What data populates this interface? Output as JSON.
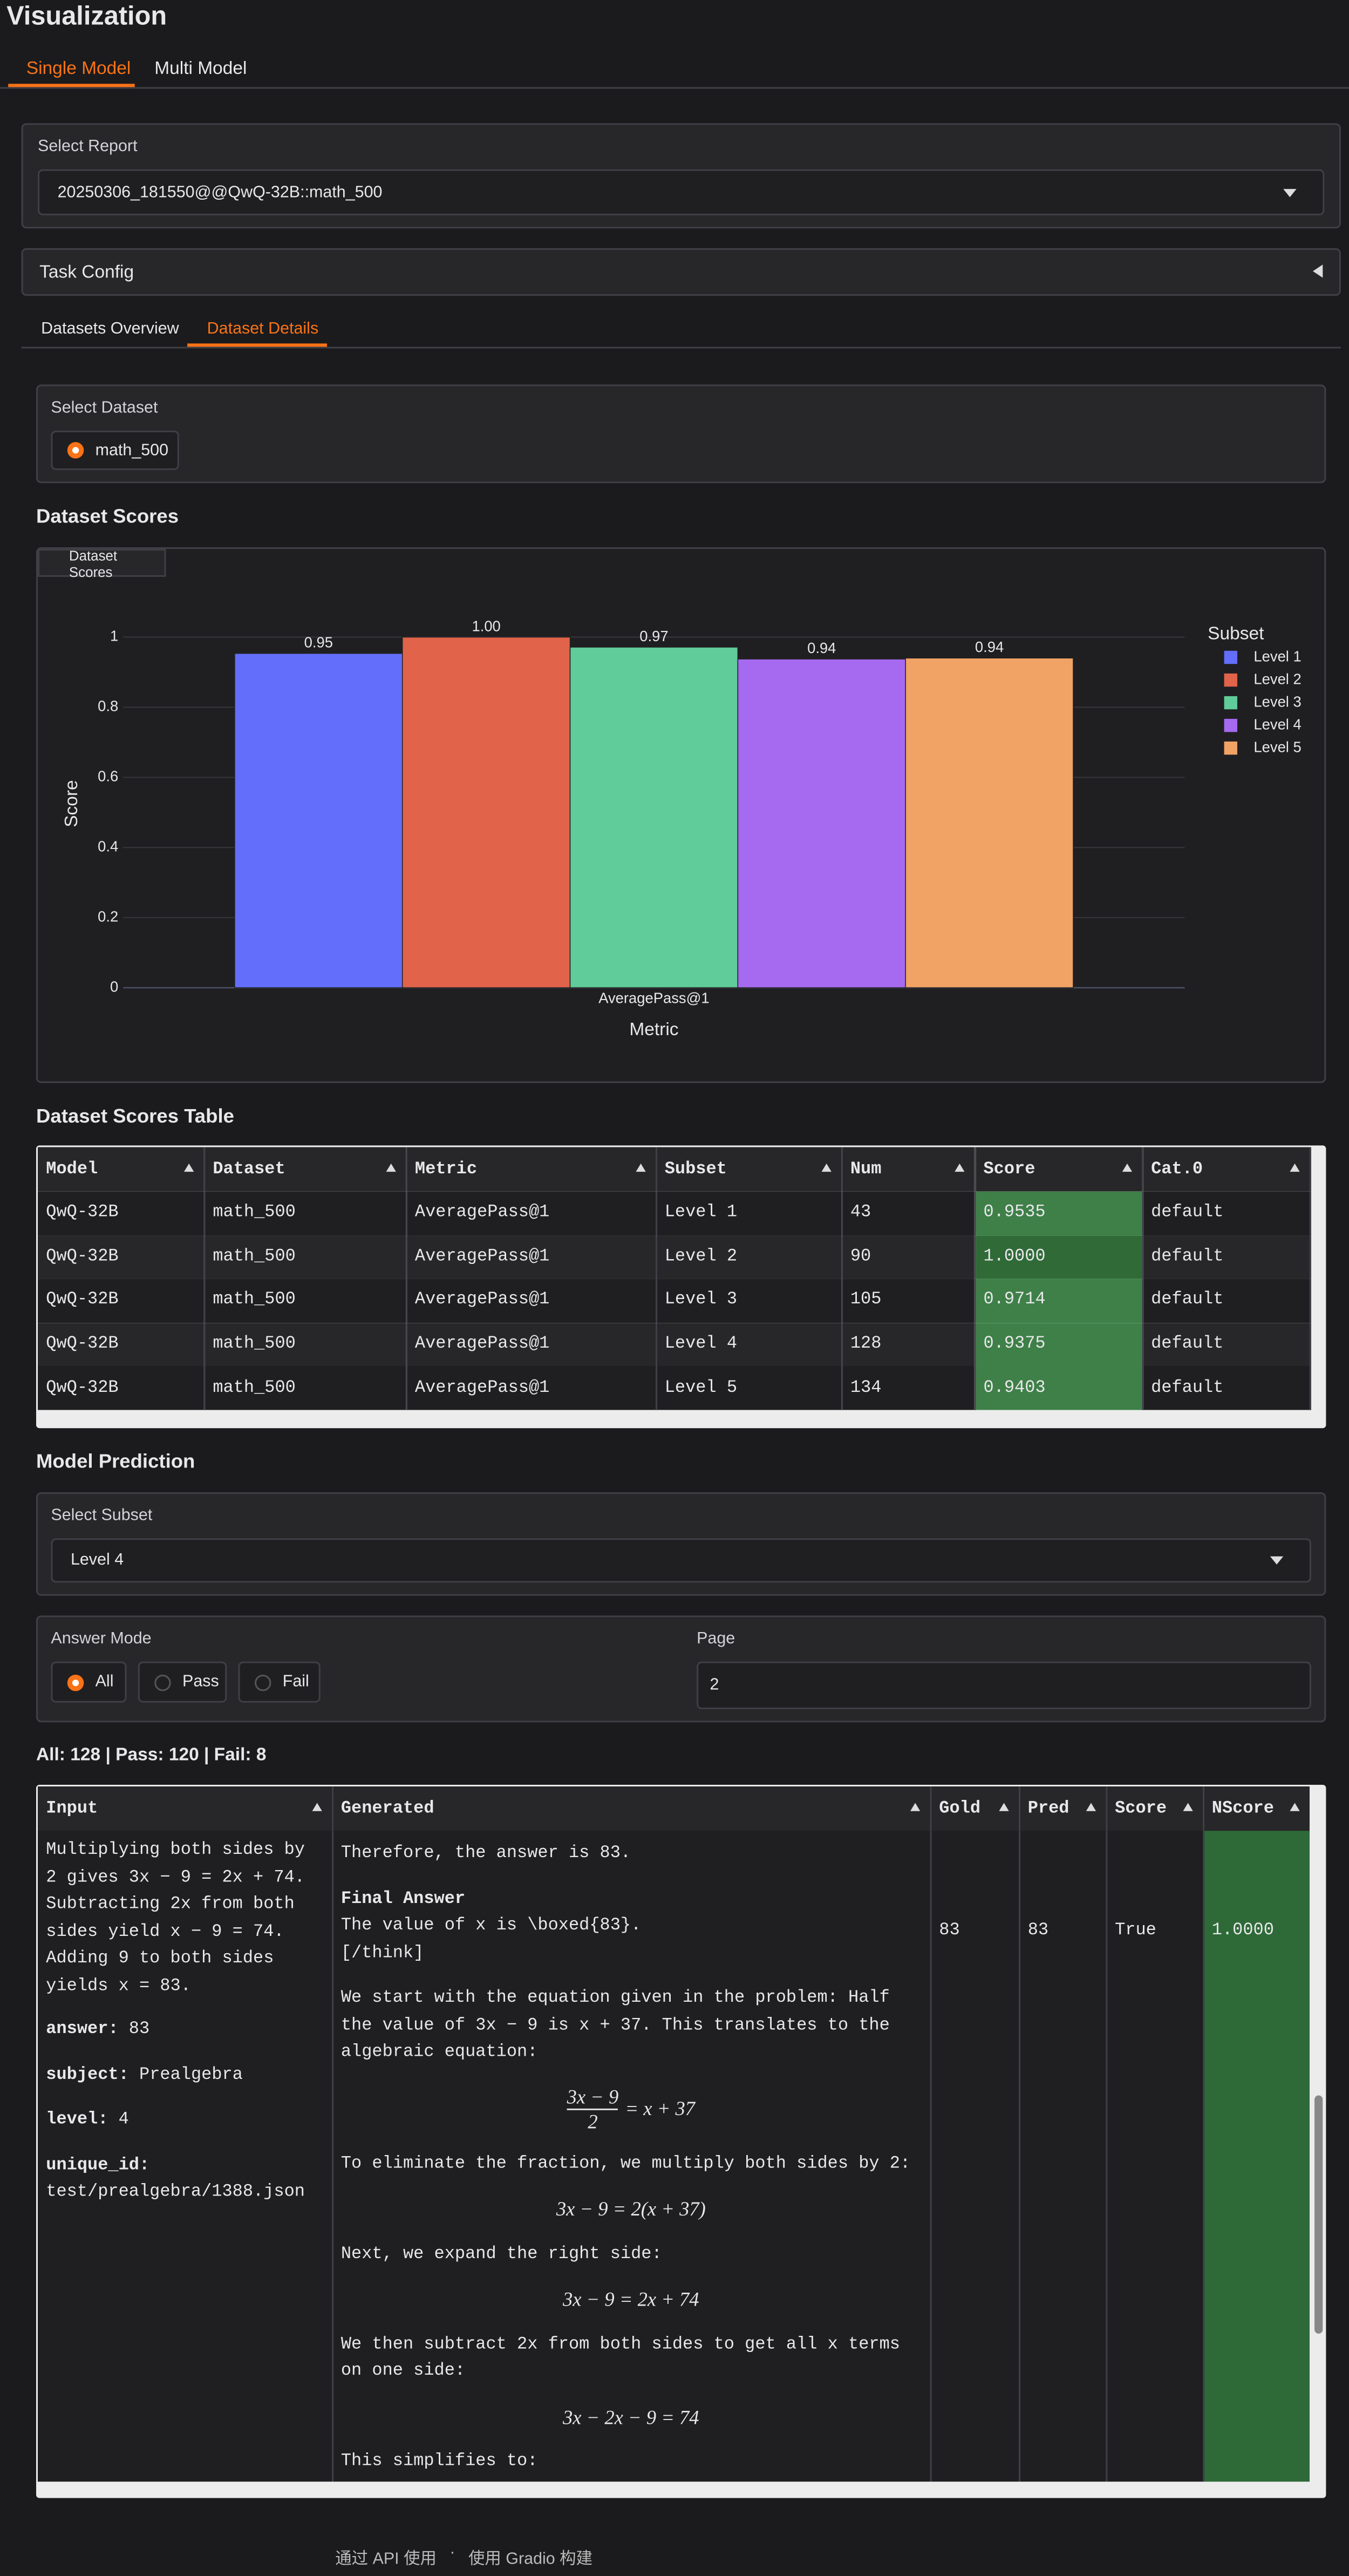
{
  "header": {
    "title": "Visualization",
    "tabs": [
      "Single Model",
      "Multi Model"
    ]
  },
  "report": {
    "label": "Select Report",
    "value": "20250306_181550@@QwQ-32B::math_500"
  },
  "task_config": "Task Config",
  "detail_tabs": [
    "Datasets Overview",
    "Dataset Details"
  ],
  "select_dataset": {
    "label": "Select Dataset",
    "options": [
      "math_500"
    ]
  },
  "dataset_scores": {
    "heading": "Dataset Scores"
  },
  "chart_data": {
    "type": "bar",
    "plot_label": "Dataset Scores",
    "x_label": "Metric",
    "y_label": "Score",
    "categories": [
      "AveragePass@1"
    ],
    "legend_title": "Subset",
    "series": [
      {
        "name": "Level 1",
        "color": "#636efa",
        "values": [
          0.9535
        ],
        "value_labels": [
          "0.95"
        ]
      },
      {
        "name": "Level 2",
        "color": "#e0634a",
        "values": [
          1.0
        ],
        "value_labels": [
          "1.00"
        ]
      },
      {
        "name": "Level 3",
        "color": "#5fcc99",
        "values": [
          0.9714
        ],
        "value_labels": [
          "0.97"
        ]
      },
      {
        "name": "Level 4",
        "color": "#a66af0",
        "values": [
          0.9375
        ],
        "value_labels": [
          "0.94"
        ]
      },
      {
        "name": "Level 5",
        "color": "#f0a365",
        "values": [
          0.9403
        ],
        "value_labels": [
          "0.94"
        ]
      }
    ],
    "ylim": [
      0,
      1.05
    ],
    "yticks": [
      0,
      0.2,
      0.4,
      0.6,
      0.8,
      1
    ],
    "grid": true
  },
  "scores_table": {
    "heading": "Dataset Scores Table",
    "columns": [
      "Model",
      "Dataset",
      "Metric",
      "Subset",
      "Num",
      "Score",
      "Cat.0"
    ],
    "rows": [
      [
        "QwQ-32B",
        "math_500",
        "AveragePass@1",
        "Level 1",
        "43",
        "0.9535",
        "default"
      ],
      [
        "QwQ-32B",
        "math_500",
        "AveragePass@1",
        "Level 2",
        "90",
        "1.0000",
        "default"
      ],
      [
        "QwQ-32B",
        "math_500",
        "AveragePass@1",
        "Level 3",
        "105",
        "0.9714",
        "default"
      ],
      [
        "QwQ-32B",
        "math_500",
        "AveragePass@1",
        "Level 4",
        "128",
        "0.9375",
        "default"
      ],
      [
        "QwQ-32B",
        "math_500",
        "AveragePass@1",
        "Level 5",
        "134",
        "0.9403",
        "default"
      ]
    ]
  },
  "prediction": {
    "heading": "Model Prediction",
    "subset_label": "Select Subset",
    "subset": "Level 4",
    "answer_mode_label": "Answer Mode",
    "answer_modes": [
      "All",
      "Pass",
      "Fail"
    ],
    "page_label": "Page",
    "page": "2",
    "summary": "All: 128 | Pass: 120 | Fail: 8",
    "table": {
      "columns": [
        "Input",
        "Generated",
        "Gold",
        "Pred",
        "Score",
        "NScore"
      ],
      "input": {
        "text": "Multiplying both sides by 2 gives 3x − 9 = 2x + 74. Subtracting 2x from both sides yield x − 9 = 74. Adding 9 to both sides yields x = 83.",
        "fields": [
          {
            "key": "answer:",
            "value": "83"
          },
          {
            "key": "subject:",
            "value": "Prealgebra"
          },
          {
            "key": "level:",
            "value": "4"
          },
          {
            "key": "unique_id:",
            "value": "test/prealgebra/1388.json"
          }
        ]
      },
      "generated": [
        {
          "text": "Therefore, the answer is 83."
        },
        {
          "bold": "Final Answer"
        },
        {
          "text": "The value of x is \\boxed{83}."
        },
        {
          "text": "[/think]"
        },
        {
          "text": "We start with the equation given in the problem: Half the value of 3x − 9 is x + 37. This translates to the algebraic equation:"
        },
        {
          "frac": [
            "3x − 9",
            "2"
          ],
          "rest": "= x + 37"
        },
        {
          "text": "To eliminate the fraction, we multiply both sides by 2:"
        },
        {
          "math": "3x − 9 = 2(x + 37)"
        },
        {
          "text": "Next, we expand the right side:"
        },
        {
          "math": "3x − 9 = 2x + 74"
        },
        {
          "text": "We then subtract 2x from both sides to get all x terms on one side:"
        },
        {
          "math": "3x − 2x − 9 = 74"
        },
        {
          "text": "This simplifies to:"
        }
      ],
      "gold": "83",
      "pred": "83",
      "score": "True",
      "nscore": "1.0000"
    }
  },
  "footer": [
    "通过 API 使用",
    "·",
    "使用 Gradio 构建"
  ]
}
